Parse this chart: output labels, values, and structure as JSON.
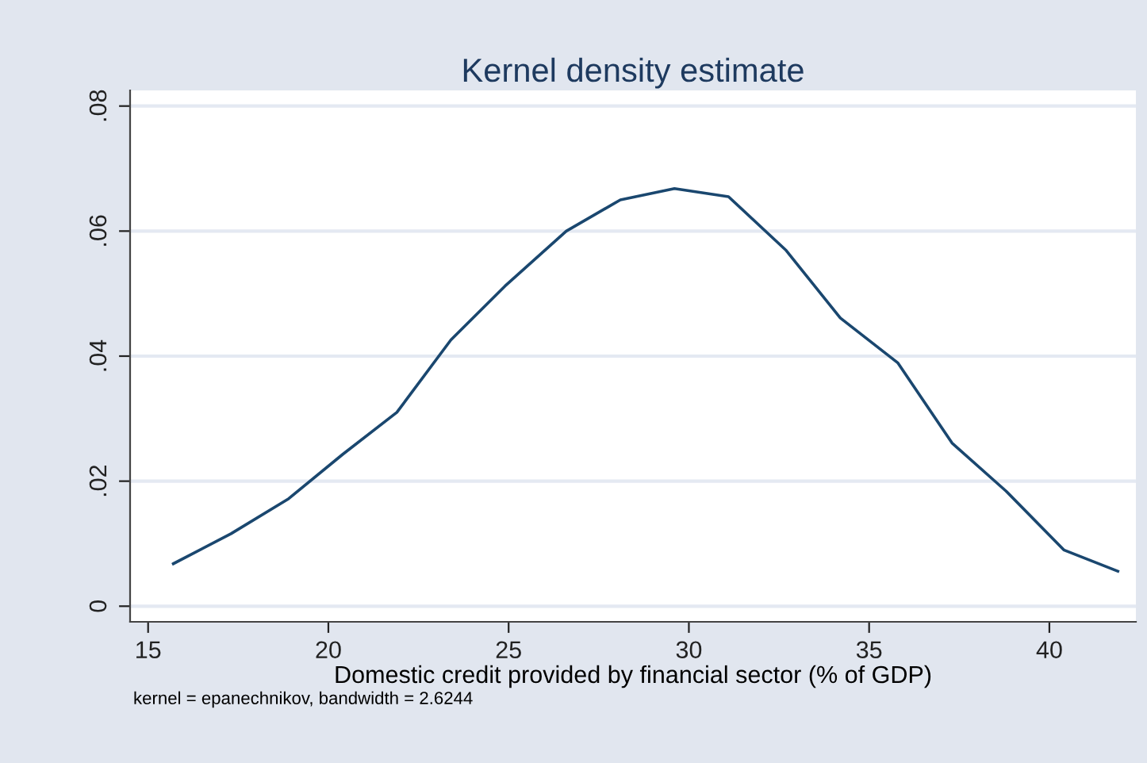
{
  "chart_data": {
    "type": "line",
    "title": "Kernel density estimate",
    "xlabel": "Domestic credit provided by financial sector (% of GDP)",
    "annotations": [
      "kernel = epanechnikov, bandwidth = 2.6244"
    ],
    "x": [
      15.7,
      17.3,
      18.9,
      20.4,
      21.9,
      23.4,
      24.9,
      26.6,
      28.1,
      29.6,
      31.1,
      32.7,
      34.2,
      35.8,
      37.3,
      38.8,
      40.4,
      41.9
    ],
    "series": [
      {
        "color": "#1a476f",
        "values": [
          0.0068,
          0.0116,
          0.0172,
          0.0243,
          0.031,
          0.0426,
          0.0512,
          0.06,
          0.065,
          0.0668,
          0.0655,
          0.0569,
          0.0461,
          0.0389,
          0.0261,
          0.0184,
          0.009,
          0.0056
        ]
      }
    ],
    "xlim": [
      14.5,
      42.4
    ],
    "ylim": [
      -0.0025,
      0.0825
    ],
    "xticks": [
      15,
      20,
      25,
      30,
      35,
      40
    ],
    "yticks": [
      {
        "value": 0,
        "label": "0"
      },
      {
        "value": 0.02,
        "label": ".02"
      },
      {
        "value": 0.04,
        "label": ".04"
      },
      {
        "value": 0.06,
        "label": ".06"
      },
      {
        "value": 0.08,
        "label": ".08"
      }
    ],
    "grid": "y",
    "legend": false,
    "marker": "none",
    "line_style": "solid"
  }
}
